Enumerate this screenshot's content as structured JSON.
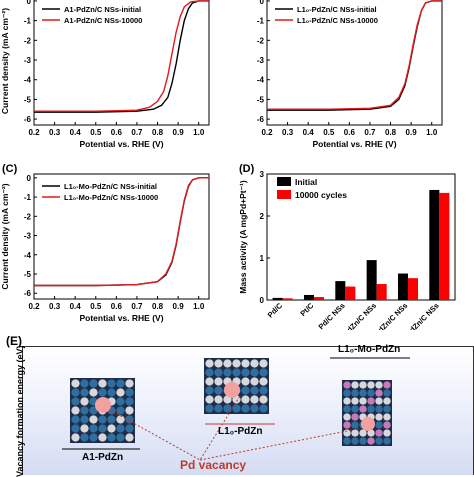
{
  "chart_data": [
    {
      "type": "line",
      "panel_label": "",
      "ylabel": "Current density (mA cm⁻²)",
      "xlabel": "Potential vs. RHE (V)",
      "xlim": [
        0.2,
        1.05
      ],
      "ylim": [
        -6.3,
        0.2
      ],
      "xticks": [
        "0.2",
        "0.3",
        "0.4",
        "0.5",
        "0.6",
        "0.7",
        "0.8",
        "0.9",
        "1.0"
      ],
      "yticks": [
        "0",
        "-1",
        "-2",
        "-3",
        "-4",
        "-5",
        "-6"
      ],
      "series": [
        {
          "name": "A1-PdZn/C NSs-initial",
          "color": "#000000",
          "x": [
            0.2,
            0.5,
            0.7,
            0.78,
            0.82,
            0.85,
            0.87,
            0.89,
            0.91,
            0.93,
            0.95,
            0.97,
            1.0,
            1.05
          ],
          "y": [
            -5.65,
            -5.65,
            -5.6,
            -5.5,
            -5.3,
            -4.9,
            -4.2,
            -3.2,
            -2.0,
            -1.0,
            -0.4,
            -0.1,
            0.0,
            0.0
          ]
        },
        {
          "name": "A1-PdZn/C NSs-10000",
          "color": "#e41a1c",
          "x": [
            0.2,
            0.5,
            0.7,
            0.76,
            0.8,
            0.83,
            0.85,
            0.87,
            0.89,
            0.91,
            0.93,
            0.96,
            1.0,
            1.05
          ],
          "y": [
            -5.6,
            -5.6,
            -5.55,
            -5.4,
            -5.1,
            -4.6,
            -3.8,
            -2.7,
            -1.6,
            -0.8,
            -0.3,
            -0.05,
            0.0,
            0.0
          ]
        }
      ]
    },
    {
      "type": "line",
      "panel_label": "",
      "ylabel": "",
      "xlabel": "Potential vs. RHE (V)",
      "xlim": [
        0.2,
        1.05
      ],
      "ylim": [
        -6.3,
        0.2
      ],
      "xticks": [
        "0.2",
        "0.3",
        "0.4",
        "0.5",
        "0.6",
        "0.7",
        "0.8",
        "0.9",
        "1.0"
      ],
      "yticks": [
        "0",
        "-1",
        "-2",
        "-3",
        "-4",
        "-5",
        "-6"
      ],
      "series": [
        {
          "name": "L1₀-PdZn/C NSs-initial",
          "color": "#000000",
          "x": [
            0.2,
            0.5,
            0.7,
            0.8,
            0.84,
            0.87,
            0.89,
            0.91,
            0.93,
            0.95,
            0.97,
            1.0,
            1.05
          ],
          "y": [
            -5.55,
            -5.55,
            -5.5,
            -5.35,
            -5.0,
            -4.3,
            -3.4,
            -2.3,
            -1.3,
            -0.5,
            -0.1,
            0.0,
            0.0
          ]
        },
        {
          "name": "L1₀-PdZn/C NSs-10000",
          "color": "#e41a1c",
          "x": [
            0.2,
            0.5,
            0.7,
            0.8,
            0.84,
            0.87,
            0.89,
            0.91,
            0.93,
            0.95,
            0.97,
            1.0,
            1.05
          ],
          "y": [
            -5.5,
            -5.5,
            -5.45,
            -5.3,
            -4.9,
            -4.2,
            -3.3,
            -2.2,
            -1.2,
            -0.5,
            -0.1,
            0.0,
            0.0
          ]
        }
      ]
    },
    {
      "type": "line",
      "panel_label": "(C)",
      "ylabel": "Current density (mA cm⁻²)",
      "xlabel": "Potential vs. RHE (V)",
      "xlim": [
        0.2,
        1.05
      ],
      "ylim": [
        -6.3,
        0.2
      ],
      "xticks": [
        "0.2",
        "0.3",
        "0.4",
        "0.5",
        "0.6",
        "0.7",
        "0.8",
        "0.9",
        "1.0"
      ],
      "yticks": [
        "0",
        "-1",
        "-2",
        "-3",
        "-4",
        "-5",
        "-6"
      ],
      "series": [
        {
          "name": "L1₀-Mo-PdZn/C NSs-initial",
          "color": "#000000",
          "x": [
            0.2,
            0.5,
            0.7,
            0.8,
            0.84,
            0.87,
            0.89,
            0.91,
            0.93,
            0.95,
            0.97,
            1.0,
            1.05
          ],
          "y": [
            -5.6,
            -5.6,
            -5.55,
            -5.4,
            -5.05,
            -4.4,
            -3.5,
            -2.3,
            -1.2,
            -0.45,
            -0.1,
            0.0,
            0.0
          ]
        },
        {
          "name": "L1₀-Mo-PdZn/C NSs-10000",
          "color": "#e41a1c",
          "x": [
            0.2,
            0.5,
            0.7,
            0.8,
            0.84,
            0.87,
            0.89,
            0.91,
            0.93,
            0.95,
            0.97,
            1.0,
            1.05
          ],
          "y": [
            -5.6,
            -5.6,
            -5.55,
            -5.4,
            -5.0,
            -4.35,
            -3.45,
            -2.25,
            -1.15,
            -0.4,
            -0.1,
            0.0,
            0.0
          ]
        }
      ]
    },
    {
      "type": "bar",
      "panel_label": "(D)",
      "ylabel": "Mass activity (A mgPd+Pt⁻¹)",
      "ylim": [
        0,
        3
      ],
      "yticks": [
        "0",
        "1",
        "2",
        "3"
      ],
      "categories": [
        "Pd/C",
        "Pt/C",
        "Pd/C NSs",
        "A1-PdZn/C NSs",
        "L1₀-PdZn/C NSs",
        "L1₀-Mo-PdZn/C NSs"
      ],
      "series": [
        {
          "name": "Initial",
          "color": "#000000",
          "values": [
            0.05,
            0.12,
            0.45,
            0.95,
            0.63,
            2.62
          ]
        },
        {
          "name": "10000 cycles",
          "color": "#ff0000",
          "values": [
            0.04,
            0.07,
            0.32,
            0.38,
            0.52,
            2.55
          ]
        }
      ]
    }
  ],
  "panel_e": {
    "label": "(E)",
    "ylabel": "Vacancy formation energy (eV)",
    "structures": [
      "A1-PdZn",
      "L1₀-PdZn",
      "L1₀-Mo-PdZn"
    ],
    "annotation": "Pd vacancy",
    "colors": {
      "pd": "#d8d8dc",
      "zn": "#2f6f9f",
      "mo": "#c87ab8",
      "vacancy": "#f4a0a0",
      "accent": "#c0392b"
    }
  }
}
